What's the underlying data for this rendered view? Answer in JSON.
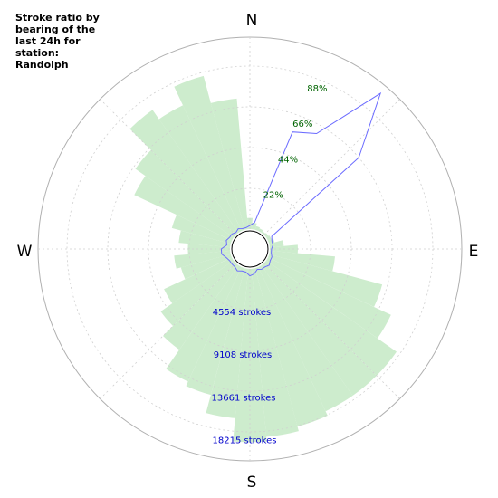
{
  "title_lines": [
    "Stroke ratio by",
    "bearing of the",
    "last 24h for",
    "station:",
    "Randolph"
  ],
  "compass": {
    "n": "N",
    "e": "E",
    "s": "S",
    "w": "W"
  },
  "colors": {
    "bars": "#cdeccd",
    "ratio_line": "#6b6bff",
    "grid": "#d0d0d0",
    "outer_ring": "#b0b0b0",
    "percent_labels": "#006400",
    "count_labels": "#0000cc"
  },
  "chart_data": {
    "type": "polar",
    "title": "Stroke ratio by bearing of the last 24h for station: Randolph",
    "bearing_step_deg": 10,
    "bars": {
      "name": "strokes",
      "scale_max": 20500,
      "bearings_deg": [
        0,
        10,
        20,
        30,
        40,
        50,
        60,
        70,
        80,
        90,
        100,
        110,
        120,
        130,
        140,
        150,
        160,
        170,
        180,
        190,
        200,
        210,
        220,
        230,
        240,
        250,
        260,
        270,
        280,
        290,
        300,
        310,
        320,
        330,
        340,
        350
      ],
      "values": [
        1200,
        700,
        400,
        300,
        200,
        300,
        400,
        600,
        1500,
        3000,
        7000,
        12500,
        14500,
        17000,
        17000,
        17000,
        17500,
        18000,
        18500,
        16000,
        14000,
        13500,
        11000,
        9500,
        8000,
        5500,
        6000,
        4500,
        5500,
        6500,
        11500,
        12800,
        16000,
        14800,
        17000,
        14000
      ]
    },
    "ratio": {
      "name": "stroke ratio",
      "scale_max_pct": 110,
      "bearings_deg": [
        0,
        10,
        20,
        30,
        40,
        50,
        60,
        70,
        80,
        90,
        100,
        110,
        120,
        130,
        140,
        150,
        160,
        170,
        180,
        190,
        200,
        210,
        220,
        230,
        240,
        250,
        260,
        270,
        280,
        290,
        300,
        310,
        320,
        330,
        340,
        350
      ],
      "values_pct": [
        2,
        4,
        60,
        65,
        105,
        70,
        3,
        2,
        2,
        1,
        1,
        2,
        2,
        3,
        2,
        2,
        1,
        3,
        4,
        2,
        2,
        3,
        2,
        2,
        2,
        3,
        5,
        5,
        2,
        3,
        2,
        2,
        1,
        2,
        1,
        1
      ]
    },
    "percent_rings": {
      "labels": [
        "22%",
        "44%",
        "66%",
        "88%"
      ],
      "values": [
        22,
        44,
        66,
        88
      ],
      "label_bearing_deg": 22.5
    },
    "count_rings": {
      "labels": [
        "4554 strokes",
        "9108 strokes",
        "13661 strokes",
        "18215 strokes"
      ],
      "values": [
        4554,
        9108,
        13661,
        18215
      ]
    },
    "grid": true
  }
}
